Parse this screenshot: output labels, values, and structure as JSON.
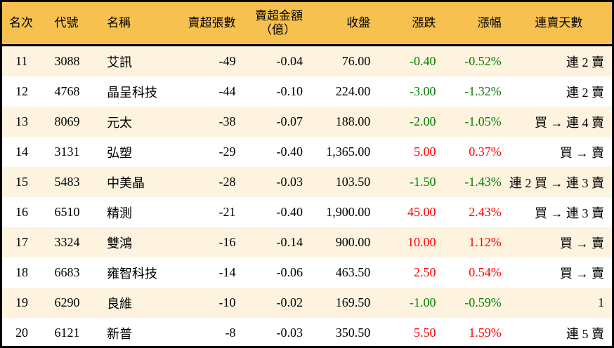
{
  "headers": {
    "rank": "名次",
    "code": "代號",
    "name": "名稱",
    "shares": "賣超張數",
    "amount_1": "賣超金額",
    "amount_2": "（億）",
    "close": "收盤",
    "change": "漲跌",
    "pct": "漲幅",
    "streak": "連賣天數"
  },
  "colors": {
    "header_bg": "#f7c14f",
    "row_alt": "#fdf3df",
    "up": "#ff0000",
    "down": "#008000"
  },
  "rows": [
    {
      "rank": "11",
      "code": "3088",
      "name": "艾訊",
      "shares": "-49",
      "amount": "-0.04",
      "close": "76.00",
      "change": "-0.40",
      "pct": "-0.52%",
      "streak": "連 2 賣",
      "dir": "down"
    },
    {
      "rank": "12",
      "code": "4768",
      "name": "晶呈科技",
      "shares": "-44",
      "amount": "-0.10",
      "close": "224.00",
      "change": "-3.00",
      "pct": "-1.32%",
      "streak": "連 2 賣",
      "dir": "down"
    },
    {
      "rank": "13",
      "code": "8069",
      "name": "元太",
      "shares": "-38",
      "amount": "-0.07",
      "close": "188.00",
      "change": "-2.00",
      "pct": "-1.05%",
      "streak": "買 → 連 4 賣",
      "dir": "down"
    },
    {
      "rank": "14",
      "code": "3131",
      "name": "弘塑",
      "shares": "-29",
      "amount": "-0.40",
      "close": "1,365.00",
      "change": "5.00",
      "pct": "0.37%",
      "streak": "買 → 賣",
      "dir": "up"
    },
    {
      "rank": "15",
      "code": "5483",
      "name": "中美晶",
      "shares": "-28",
      "amount": "-0.03",
      "close": "103.50",
      "change": "-1.50",
      "pct": "-1.43%",
      "streak": "連 2 買 → 連 3 賣",
      "dir": "down"
    },
    {
      "rank": "16",
      "code": "6510",
      "name": "精測",
      "shares": "-21",
      "amount": "-0.40",
      "close": "1,900.00",
      "change": "45.00",
      "pct": "2.43%",
      "streak": "買 → 連 3 賣",
      "dir": "up"
    },
    {
      "rank": "17",
      "code": "3324",
      "name": "雙鴻",
      "shares": "-16",
      "amount": "-0.14",
      "close": "900.00",
      "change": "10.00",
      "pct": "1.12%",
      "streak": "買 → 賣",
      "dir": "up"
    },
    {
      "rank": "18",
      "code": "6683",
      "name": "雍智科技",
      "shares": "-14",
      "amount": "-0.06",
      "close": "463.50",
      "change": "2.50",
      "pct": "0.54%",
      "streak": "買 → 賣",
      "dir": "up"
    },
    {
      "rank": "19",
      "code": "6290",
      "name": "良維",
      "shares": "-10",
      "amount": "-0.02",
      "close": "169.50",
      "change": "-1.00",
      "pct": "-0.59%",
      "streak": "1",
      "dir": "down"
    },
    {
      "rank": "20",
      "code": "6121",
      "name": "新普",
      "shares": "-8",
      "amount": "-0.03",
      "close": "350.50",
      "change": "5.50",
      "pct": "1.59%",
      "streak": "連 5 賣",
      "dir": "up"
    }
  ]
}
